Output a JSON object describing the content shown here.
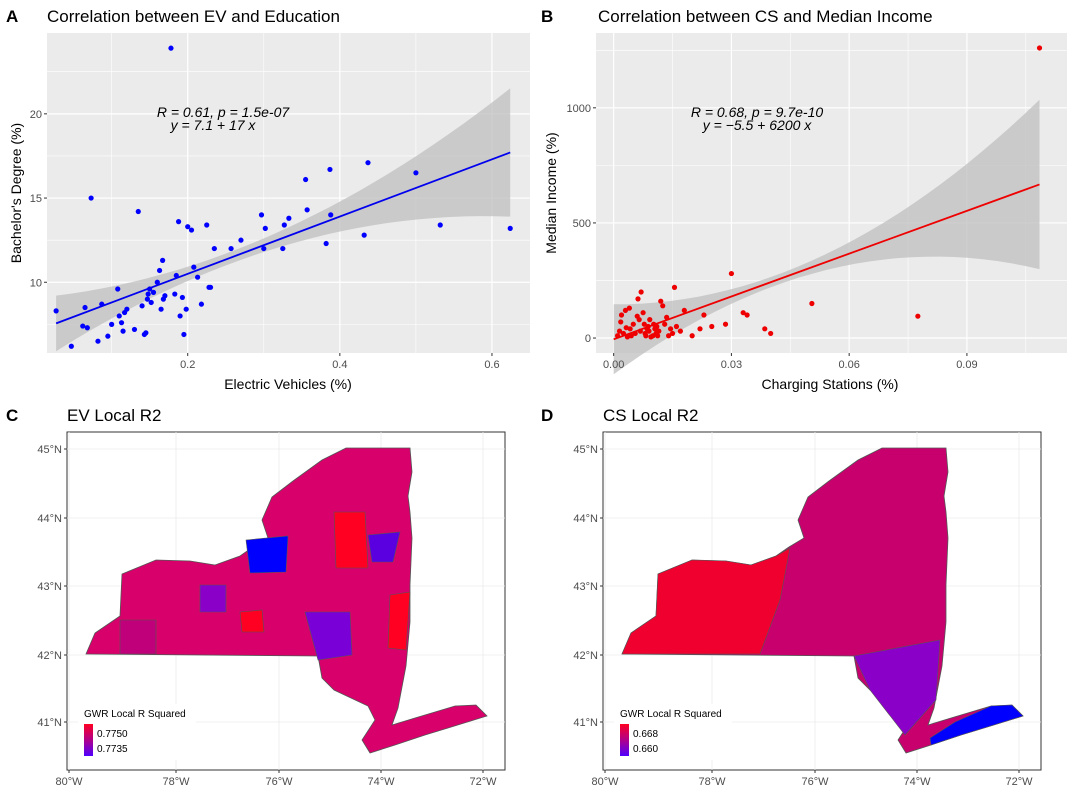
{
  "chart_data": [
    {
      "panel": "A",
      "type": "scatter",
      "title": "Correlation between EV and Education",
      "xlabel": "Electric Vehicles (%)",
      "ylabel": "Bachelor's Degree (%)",
      "xlim": [
        0.015,
        0.65
      ],
      "ylim": [
        5.8,
        24.8
      ],
      "xticks": [
        0.2,
        0.4,
        0.6
      ],
      "yticks": [
        10,
        15,
        20
      ],
      "xtick_labels": [
        "0.2",
        "0.4",
        "0.6"
      ],
      "ytick_labels": [
        "10",
        "15",
        "20"
      ],
      "color": "#0000ff",
      "grid": true,
      "annotation_stats": "R = 0.61, p = 1.5e-07",
      "annotation_eq": "y = 7.1 + 17 x",
      "fit": {
        "intercept": 7.1,
        "slope": 17.0,
        "x_range": [
          0.027,
          0.624
        ]
      },
      "x": [
        0.027,
        0.047,
        0.062,
        0.065,
        0.068,
        0.073,
        0.082,
        0.087,
        0.095,
        0.1,
        0.108,
        0.11,
        0.113,
        0.115,
        0.117,
        0.12,
        0.13,
        0.135,
        0.14,
        0.143,
        0.145,
        0.147,
        0.148,
        0.15,
        0.152,
        0.155,
        0.16,
        0.163,
        0.165,
        0.167,
        0.168,
        0.17,
        0.178,
        0.183,
        0.185,
        0.188,
        0.19,
        0.193,
        0.195,
        0.198,
        0.2,
        0.205,
        0.208,
        0.213,
        0.218,
        0.225,
        0.228,
        0.23,
        0.235,
        0.257,
        0.27,
        0.297,
        0.3,
        0.302,
        0.325,
        0.327,
        0.333,
        0.355,
        0.357,
        0.382,
        0.387,
        0.388,
        0.432,
        0.437,
        0.5,
        0.532,
        0.624
      ],
      "y": [
        8.3,
        6.2,
        7.4,
        8.5,
        7.3,
        15.0,
        6.5,
        8.7,
        6.8,
        7.5,
        9.6,
        8.0,
        7.6,
        7.1,
        8.2,
        8.4,
        7.2,
        14.2,
        8.6,
        6.9,
        7.0,
        9.0,
        9.3,
        9.6,
        8.8,
        9.4,
        10.0,
        10.7,
        8.4,
        11.3,
        9.0,
        9.2,
        23.9,
        9.3,
        10.4,
        13.6,
        8.0,
        9.1,
        6.9,
        8.4,
        13.3,
        13.1,
        10.9,
        10.3,
        8.7,
        13.4,
        9.7,
        9.7,
        12.0,
        12.0,
        12.5,
        14.0,
        12.0,
        13.2,
        12.0,
        13.4,
        13.8,
        16.1,
        14.3,
        12.3,
        16.7,
        14.0,
        12.8,
        17.1,
        16.5,
        13.4,
        13.2
      ]
    },
    {
      "panel": "B",
      "type": "scatter",
      "title": "Correlation between CS and Median Income",
      "xlabel": "Charging Stations (%)",
      "ylabel": "Median Income (%)",
      "xlim": [
        -0.0045,
        0.1155
      ],
      "ylim": [
        -65,
        1325
      ],
      "xticks": [
        0.0,
        0.03,
        0.06,
        0.09
      ],
      "yticks": [
        0,
        500,
        1000
      ],
      "xtick_labels": [
        "0.00",
        "0.03",
        "0.06",
        "0.09"
      ],
      "ytick_labels": [
        "0",
        "500",
        "1000"
      ],
      "color": "#ee0000",
      "grid": true,
      "annotation_stats": "R = 0.68, p = 9.7e-10",
      "annotation_eq": "y = −5.5 + 6200 x",
      "fit": {
        "intercept": -5.5,
        "slope": 6200,
        "x_range": [
          0.0,
          0.1085
        ]
      },
      "x": [
        0.001,
        0.0015,
        0.0018,
        0.002,
        0.0025,
        0.003,
        0.0032,
        0.0035,
        0.004,
        0.0042,
        0.0045,
        0.005,
        0.0055,
        0.006,
        0.0062,
        0.0065,
        0.0068,
        0.007,
        0.0075,
        0.0078,
        0.008,
        0.0082,
        0.0085,
        0.0088,
        0.009,
        0.0092,
        0.0095,
        0.01,
        0.0102,
        0.0105,
        0.0108,
        0.011,
        0.0112,
        0.0115,
        0.012,
        0.0125,
        0.013,
        0.0135,
        0.014,
        0.0145,
        0.015,
        0.0155,
        0.016,
        0.017,
        0.018,
        0.02,
        0.022,
        0.023,
        0.025,
        0.0285,
        0.03,
        0.033,
        0.034,
        0.0385,
        0.04,
        0.0505,
        0.0775,
        0.1085
      ],
      "y": [
        10,
        30,
        70,
        100,
        20,
        120,
        45,
        5,
        130,
        40,
        10,
        60,
        20,
        95,
        170,
        80,
        30,
        200,
        110,
        60,
        20,
        10,
        40,
        50,
        30,
        80,
        5,
        10,
        60,
        40,
        20,
        50,
        10,
        30,
        160,
        140,
        60,
        90,
        10,
        40,
        20,
        220,
        50,
        30,
        120,
        10,
        40,
        100,
        50,
        60,
        280,
        110,
        100,
        40,
        20,
        150,
        95,
        1260
      ]
    },
    {
      "panel": "C",
      "type": "heatmap",
      "title": "EV Local R2",
      "legend_title": "GWR Local R Squared",
      "legend_values": [
        "0.7750",
        "0.7735"
      ],
      "legend_colors": [
        "#e8003a",
        "#7000e0"
      ],
      "xtick_labels": [
        "80°W",
        "78°W",
        "76°W",
        "74°W",
        "72°W"
      ],
      "ytick_labels": [
        "45°N",
        "44°N",
        "43°N",
        "42°N",
        "41°N"
      ]
    },
    {
      "panel": "D",
      "type": "heatmap",
      "title": "CS Local R2",
      "legend_title": "GWR Local R Squared",
      "legend_values": [
        "0.668",
        "0.660"
      ],
      "legend_colors": [
        "#e8003a",
        "#7000e0"
      ],
      "xtick_labels": [
        "80°W",
        "78°W",
        "76°W",
        "74°W",
        "72°W"
      ],
      "ytick_labels": [
        "45°N",
        "44°N",
        "43°N",
        "42°N",
        "41°N"
      ]
    }
  ],
  "panel_labels": [
    "A",
    "B",
    "C",
    "D"
  ]
}
